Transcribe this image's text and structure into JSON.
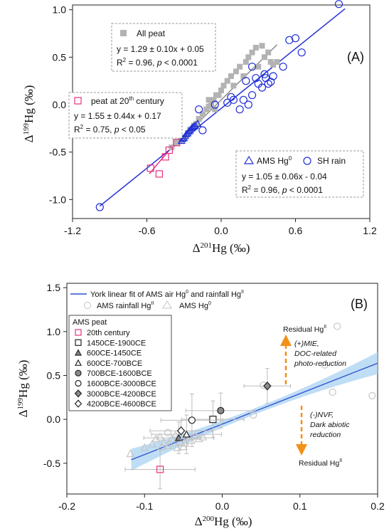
{
  "chart_data": [
    {
      "panel": "(A)",
      "type": "scatter",
      "xlabel": "Δ201Hg (‰)",
      "ylabel": "Δ199Hg (‰)",
      "xlim": [
        -1.2,
        1.2
      ],
      "ylim": [
        -1.2,
        1.05
      ],
      "xticks": [
        "-1.2",
        "-0.6",
        "0.0",
        "0.6",
        "1.2"
      ],
      "yticks": [
        "-1.0",
        "-0.5",
        "0.0",
        "0.5",
        "1.0"
      ],
      "ytick_values": [
        -1.0,
        -0.5,
        0.0,
        0.5,
        1.0
      ],
      "xtick_values": [
        -1.2,
        -0.6,
        0.0,
        0.6,
        1.2
      ],
      "series": [
        {
          "name": "All peat",
          "marker": "square-filled",
          "color": "#b3b3b3",
          "points": [
            [
              -0.3,
              -0.35
            ],
            [
              -0.27,
              -0.3
            ],
            [
              -0.25,
              -0.26
            ],
            [
              -0.22,
              -0.22
            ],
            [
              -0.2,
              -0.2
            ],
            [
              -0.18,
              -0.15
            ],
            [
              -0.15,
              -0.1
            ],
            [
              -0.12,
              -0.05
            ],
            [
              -0.1,
              -0.02
            ],
            [
              -0.08,
              0.0
            ],
            [
              -0.06,
              0.05
            ],
            [
              -0.04,
              0.1
            ],
            [
              -0.02,
              0.1
            ],
            [
              0.0,
              0.15
            ],
            [
              0.02,
              0.2
            ],
            [
              0.05,
              0.25
            ],
            [
              0.08,
              0.3
            ],
            [
              0.12,
              0.35
            ],
            [
              0.15,
              0.4
            ],
            [
              0.2,
              0.45
            ],
            [
              0.22,
              0.5
            ],
            [
              0.25,
              0.55
            ],
            [
              0.28,
              0.6
            ],
            [
              0.33,
              0.62
            ],
            [
              0.35,
              0.5
            ],
            [
              0.38,
              0.55
            ],
            [
              0.4,
              0.45
            ],
            [
              -0.4,
              -0.45
            ],
            [
              -0.36,
              -0.4
            ],
            [
              -0.33,
              -0.38
            ],
            [
              -0.1,
              0.05
            ],
            [
              0.1,
              0.2
            ],
            [
              0.18,
              0.3
            ],
            [
              -0.05,
              -0.05
            ],
            [
              0.3,
              0.4
            ],
            [
              0.42,
              0.42
            ],
            [
              0.45,
              0.45
            ]
          ]
        },
        {
          "name": "peat at 20th century",
          "marker": "square-open",
          "color": "#e8317e",
          "points": [
            [
              -0.57,
              -0.67
            ],
            [
              -0.5,
              -0.73
            ],
            [
              -0.45,
              -0.55
            ],
            [
              -0.42,
              -0.48
            ],
            [
              -0.36,
              -0.4
            ]
          ]
        },
        {
          "name": "AMS Hg0",
          "marker": "triangle-open",
          "color": "#1f2ed6",
          "points": [
            [
              -0.32,
              -0.38
            ],
            [
              -0.3,
              -0.35
            ],
            [
              -0.29,
              -0.33
            ],
            [
              -0.27,
              -0.3
            ],
            [
              -0.26,
              -0.28
            ],
            [
              -0.25,
              -0.27
            ],
            [
              -0.24,
              -0.25
            ],
            [
              -0.22,
              -0.23
            ],
            [
              -0.21,
              -0.22
            ],
            [
              -0.19,
              -0.2
            ],
            [
              -0.31,
              -0.36
            ],
            [
              -0.28,
              -0.31
            ],
            [
              -0.23,
              -0.24
            ]
          ]
        },
        {
          "name": "SH rain",
          "marker": "circle-open",
          "color": "#1f2ed6",
          "points": [
            [
              -0.98,
              -1.08
            ],
            [
              -0.18,
              -0.05
            ],
            [
              -0.15,
              -0.27
            ],
            [
              -0.05,
              0.0
            ],
            [
              0.05,
              0.02
            ],
            [
              0.1,
              0.05
            ],
            [
              0.15,
              -0.05
            ],
            [
              0.18,
              0.05
            ],
            [
              0.22,
              0.0
            ],
            [
              0.25,
              0.1
            ],
            [
              0.2,
              0.25
            ],
            [
              0.25,
              0.4
            ],
            [
              0.28,
              0.28
            ],
            [
              0.3,
              0.22
            ],
            [
              0.33,
              0.18
            ],
            [
              0.35,
              0.32
            ],
            [
              0.38,
              0.22
            ],
            [
              0.4,
              0.24
            ],
            [
              0.42,
              0.3
            ],
            [
              0.5,
              0.4
            ],
            [
              0.55,
              0.68
            ],
            [
              0.6,
              0.7
            ],
            [
              0.65,
              0.55
            ],
            [
              0.95,
              1.06
            ],
            [
              0.36,
              0.28
            ],
            [
              0.08,
              0.08
            ]
          ]
        }
      ],
      "fits": [
        {
          "name": "All peat fit",
          "color": "#8c8c8c",
          "slope": 1.29,
          "intercept": 0.05,
          "x_range": [
            -0.32,
            0.45
          ]
        },
        {
          "name": "20th century fit",
          "color": "#e8317e",
          "slope": 1.55,
          "intercept": 0.17,
          "x_range": [
            -0.58,
            -0.35
          ]
        },
        {
          "name": "AMS/SH fit",
          "color": "#1f2ed6",
          "slope": 1.05,
          "intercept": -0.04,
          "x_range": [
            -0.98,
            1.0
          ]
        }
      ],
      "boxes": {
        "all_peat": {
          "label": "All peat",
          "eq": "y = 1.29 ± 0.10x + 0.05",
          "r2_a": "R",
          "r2_b": " = 0.96, ",
          "p": "p",
          "p_rest": " < 0.0001"
        },
        "peat20": {
          "label_a": "peat at 20",
          "label_sup": "th",
          "label_b": " century",
          "eq": "y = 1.55 ± 0.44x + 0.17",
          "r2_b": " = 0.75, ",
          "p_rest": " < 0.05"
        },
        "ams": {
          "label_a": "AMS Hg",
          "label_sup": "0",
          "label_b": "SH rain",
          "eq": "y = 1.05 ± 0.06x - 0.04",
          "r2_b": " = 0.96, ",
          "p_rest": " < 0.0001"
        }
      }
    },
    {
      "panel": "(B)",
      "type": "scatter",
      "xlabel": "Δ200Hg (‰)",
      "ylabel": "Δ199Hg (‰)",
      "xlim": [
        -0.2,
        0.2
      ],
      "ylim": [
        -0.85,
        1.55
      ],
      "xticks": [
        "-0.2",
        "-0.1",
        "0.0",
        "0.1",
        "0.2"
      ],
      "xtick_values": [
        -0.2,
        -0.1,
        0.0,
        0.1,
        0.2
      ],
      "yticks": [
        "-0.5",
        "0.0",
        "0.5",
        "1.0",
        "1.5"
      ],
      "ytick_values": [
        -0.5,
        0.0,
        0.5,
        1.0,
        1.5
      ],
      "york_fit": {
        "x0": -0.117,
        "y0": -0.46,
        "x1": 0.2,
        "y1": 0.64,
        "band": 0.1,
        "color": "#2e4fd0",
        "band_color": "#a9d3f2"
      },
      "background_series": [
        {
          "name": "AMS rainfall HgII",
          "marker": "circle-open",
          "color": "#c4c4c4",
          "points": [
            [
              0.148,
              1.06
            ],
            [
              0.193,
              0.27
            ],
            [
              0.142,
              0.31
            ],
            [
              0.04,
              0.05
            ],
            [
              0.053,
              0.39
            ],
            [
              0.132,
              0.62
            ],
            [
              -0.07,
              -0.15
            ]
          ]
        },
        {
          "name": "AMS Hg0",
          "marker": "triangle-open",
          "color": "#c4c4c4",
          "points": [
            [
              -0.118,
              -0.39
            ],
            [
              -0.1,
              -0.32
            ],
            [
              -0.09,
              -0.28
            ],
            [
              -0.085,
              -0.22
            ],
            [
              -0.08,
              -0.2
            ],
            [
              -0.075,
              -0.26
            ],
            [
              -0.07,
              -0.3
            ],
            [
              -0.065,
              -0.22
            ],
            [
              -0.06,
              -0.18
            ],
            [
              -0.055,
              -0.26
            ],
            [
              -0.05,
              -0.31
            ],
            [
              -0.045,
              -0.2
            ],
            [
              -0.04,
              -0.24
            ],
            [
              -0.035,
              -0.19
            ],
            [
              -0.03,
              -0.22
            ],
            [
              -0.025,
              -0.2
            ],
            [
              -0.068,
              -0.27
            ],
            [
              -0.078,
              -0.31
            ],
            [
              -0.048,
              -0.27
            ],
            [
              -0.058,
              -0.32
            ]
          ]
        }
      ],
      "peat_series": [
        {
          "name": "20th century",
          "marker": "square-open",
          "color": "#e8317e",
          "fill": "none",
          "x": -0.08,
          "y": -0.57,
          "xerr": 0.045,
          "yerr": 0.22
        },
        {
          "name": "1450CE-1900CE",
          "marker": "square",
          "color": "#222",
          "fill": "#ffffff",
          "x": -0.012,
          "y": 0.0,
          "xerr": 0.04,
          "yerr": 0.21
        },
        {
          "name": "600CE-1450CE",
          "marker": "triangle",
          "color": "#222",
          "fill": "#8a8a8a",
          "x": -0.056,
          "y": -0.21,
          "xerr": 0.045,
          "yerr": 0.18
        },
        {
          "name": "600CE-700BCE",
          "marker": "triangle",
          "color": "#222",
          "fill": "#ffffff",
          "x": -0.046,
          "y": -0.17,
          "xerr": 0.045,
          "yerr": 0.22
        },
        {
          "name": "700BCE-1600BCE",
          "marker": "circle",
          "color": "#222",
          "fill": "#8a8a8a",
          "x": -0.002,
          "y": 0.1,
          "xerr": 0.045,
          "yerr": 0.2
        },
        {
          "name": "1600BCE-3000BCE",
          "marker": "circle",
          "color": "#222",
          "fill": "#ffffff",
          "x": -0.039,
          "y": -0.01,
          "xerr": 0.04,
          "yerr": 0.3
        },
        {
          "name": "3000BCE-4200BCE",
          "marker": "diamond",
          "color": "#222",
          "fill": "#8a8a8a",
          "x": 0.058,
          "y": 0.38,
          "xerr": 0.03,
          "yerr": 0.2
        },
        {
          "name": "4200BCE-4600BCE",
          "marker": "diamond",
          "color": "#222",
          "fill": "#ffffff",
          "x": -0.053,
          "y": -0.13,
          "xerr": 0.04,
          "yerr": 0.12
        }
      ],
      "legend_top": {
        "fit_label": "York linear fit of AMS air Hg",
        "fit_sup1": "0",
        "fit_mid": " and rainfall Hg",
        "fit_sup2": "II",
        "rain_label": "AMS rainfall Hg",
        "rain_sup": "II",
        "hg0_label": "AMS Hg",
        "hg0_sup": "0"
      },
      "legend_peat_title": "AMS peat",
      "annotations": {
        "residual_top": "Residual Hg",
        "residual_top_sup": "II",
        "residual_bottom": "Residual Hg",
        "residual_bottom_sup": "II",
        "mie_line1": "(+)MIE,",
        "mie_line2": "DOC-related",
        "mie_line3": "photo-reduction",
        "nvf_line1": "(-)NVF,",
        "nvf_line2": "Dark abiotic",
        "nvf_line3": "reduction",
        "arrow_color": "#f39019"
      }
    }
  ]
}
